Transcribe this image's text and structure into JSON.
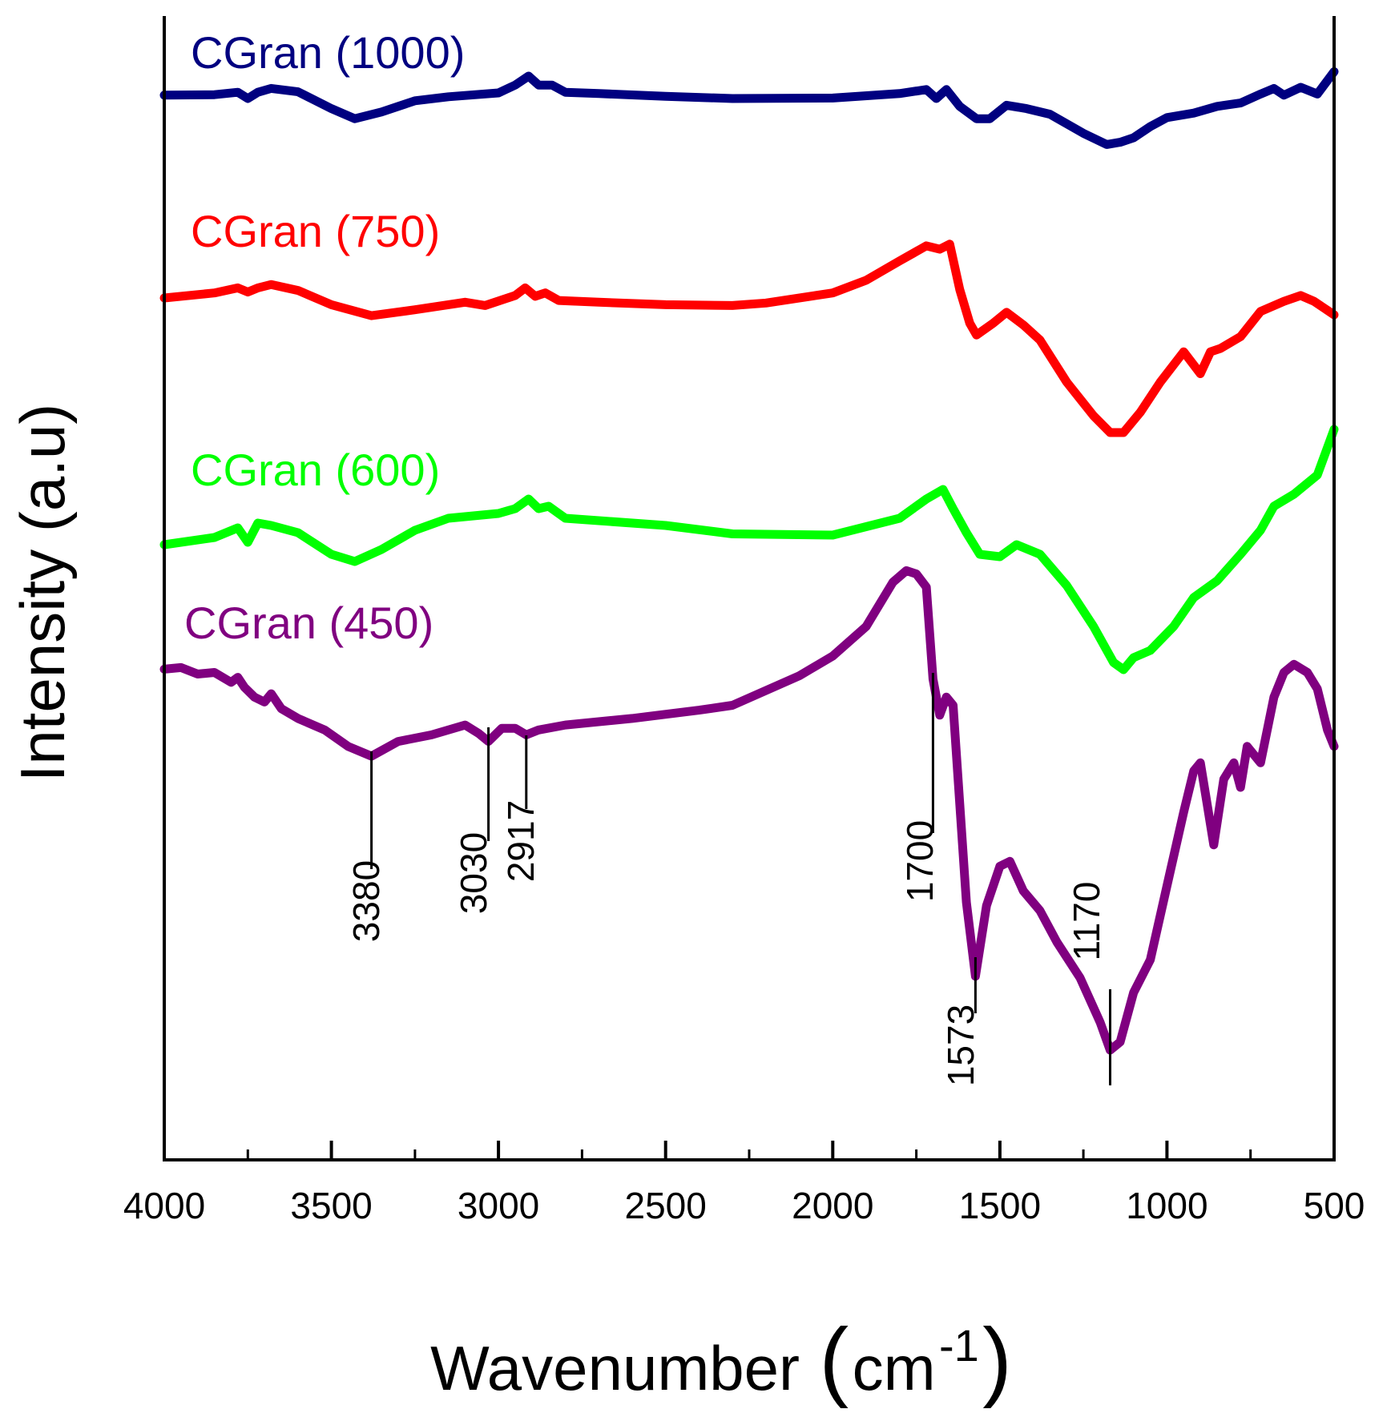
{
  "chart_data": {
    "type": "line",
    "title": "",
    "xlabel": "Wavenumber",
    "xlabel_unit": "cm",
    "xlabel_unit_exponent": "-1",
    "ylabel": "Intensity (a.u)",
    "xlim": [
      4000,
      500
    ],
    "x_reversed": true,
    "xticks": [
      4000,
      3500,
      3000,
      2500,
      2000,
      1500,
      1000,
      500
    ],
    "xtick_labels": [
      "4000",
      "3500",
      "3000",
      "2500",
      "2000",
      "1500",
      "1000",
      "500"
    ],
    "yticks_shown": false,
    "grid": false,
    "series": [
      {
        "name": "CGran (1000)",
        "label": "CGran (1000)",
        "color": "#000080",
        "x": [
          4000,
          3850,
          3780,
          3750,
          3720,
          3680,
          3600,
          3500,
          3430,
          3350,
          3250,
          3150,
          3000,
          2950,
          2910,
          2880,
          2840,
          2800,
          2700,
          2500,
          2300,
          2000,
          1800,
          1720,
          1690,
          1660,
          1620,
          1570,
          1530,
          1480,
          1420,
          1350,
          1250,
          1180,
          1140,
          1100,
          1050,
          1000,
          920,
          850,
          780,
          720,
          680,
          650,
          600,
          550,
          500
        ],
        "y": [
          0.65,
          0.67,
          0.78,
          0.5,
          0.78,
          0.95,
          0.8,
          0.05,
          -0.4,
          -0.1,
          0.4,
          0.58,
          0.75,
          1.1,
          1.5,
          1.1,
          1.1,
          0.78,
          0.72,
          0.6,
          0.5,
          0.52,
          0.72,
          0.9,
          0.5,
          0.9,
          0.15,
          -0.4,
          -0.4,
          0.2,
          0.05,
          -0.2,
          -1.05,
          -1.55,
          -1.45,
          -1.25,
          -0.75,
          -0.35,
          -0.15,
          0.15,
          0.3,
          0.7,
          0.95,
          0.65,
          1.0,
          0.7,
          1.7
        ]
      },
      {
        "name": "CGran (750)",
        "label": "CGran (750)",
        "color": "#FF0000",
        "x": [
          4000,
          3850,
          3780,
          3750,
          3720,
          3680,
          3600,
          3500,
          3380,
          3250,
          3100,
          3040,
          2950,
          2920,
          2890,
          2860,
          2820,
          2700,
          2500,
          2300,
          2200,
          2000,
          1900,
          1800,
          1720,
          1680,
          1650,
          1620,
          1590,
          1570,
          1520,
          1480,
          1430,
          1380,
          1300,
          1220,
          1170,
          1130,
          1080,
          1020,
          950,
          900,
          870,
          840,
          780,
          720,
          650,
          600,
          560,
          500
        ],
        "y": [
          0,
          0.3,
          0.6,
          0.35,
          0.6,
          0.8,
          0.45,
          -0.4,
          -1.05,
          -0.7,
          -0.25,
          -0.45,
          0.15,
          0.6,
          0.1,
          0.3,
          -0.15,
          -0.25,
          -0.4,
          -0.45,
          -0.3,
          0.3,
          1.05,
          2.2,
          3.1,
          2.9,
          3.2,
          0.5,
          -1.5,
          -2.2,
          -1.5,
          -0.85,
          -1.6,
          -2.5,
          -5.0,
          -7.0,
          -8.0,
          -8.0,
          -6.8,
          -5.0,
          -3.2,
          -4.5,
          -3.2,
          -3.0,
          -2.3,
          -0.8,
          -0.2,
          0.15,
          -0.2,
          -1.0
        ]
      },
      {
        "name": "CGran (600)",
        "label": "CGran (600)",
        "color": "#00FF00",
        "x": [
          4000,
          3850,
          3780,
          3750,
          3720,
          3680,
          3600,
          3500,
          3430,
          3350,
          3250,
          3150,
          3000,
          2950,
          2910,
          2880,
          2850,
          2800,
          2700,
          2500,
          2300,
          2000,
          1800,
          1720,
          1670,
          1640,
          1600,
          1560,
          1500,
          1450,
          1380,
          1300,
          1220,
          1160,
          1130,
          1100,
          1050,
          980,
          920,
          850,
          780,
          720,
          680,
          620,
          550,
          500
        ],
        "y": [
          -0.3,
          0.0,
          0.4,
          -0.2,
          0.6,
          0.5,
          0.2,
          -0.7,
          -1.0,
          -0.5,
          0.3,
          0.8,
          1.0,
          1.2,
          1.6,
          1.2,
          1.3,
          0.8,
          0.7,
          0.5,
          0.15,
          0.1,
          0.8,
          1.6,
          2.0,
          1.2,
          0.2,
          -0.7,
          -0.8,
          -0.3,
          -0.7,
          -2.0,
          -3.7,
          -5.2,
          -5.5,
          -5.0,
          -4.7,
          -3.7,
          -2.5,
          -1.8,
          -0.7,
          0.3,
          1.3,
          1.8,
          2.6,
          4.5
        ]
      },
      {
        "name": "CGran (450)",
        "label": "CGran (450)",
        "color": "#800080",
        "x": [
          4000,
          3950,
          3900,
          3850,
          3800,
          3780,
          3760,
          3730,
          3700,
          3680,
          3650,
          3600,
          3520,
          3450,
          3380,
          3300,
          3200,
          3100,
          3060,
          3030,
          2990,
          2950,
          2917,
          2880,
          2800,
          2600,
          2400,
          2300,
          2100,
          2000,
          1900,
          1820,
          1780,
          1750,
          1720,
          1700,
          1680,
          1660,
          1640,
          1600,
          1573,
          1540,
          1500,
          1470,
          1430,
          1380,
          1330,
          1260,
          1200,
          1170,
          1140,
          1100,
          1050,
          1000,
          950,
          920,
          900,
          880,
          860,
          830,
          800,
          780,
          760,
          720,
          680,
          650,
          620,
          580,
          550,
          520,
          500
        ],
        "y": [
          1.2,
          1.3,
          0.9,
          1.0,
          0.4,
          0.7,
          0.1,
          -0.5,
          -0.8,
          -0.3,
          -1.2,
          -1.8,
          -2.5,
          -3.5,
          -4.1,
          -3.2,
          -2.8,
          -2.2,
          -2.7,
          -3.2,
          -2.4,
          -2.4,
          -2.8,
          -2.5,
          -2.2,
          -1.8,
          -1.3,
          -1.0,
          0.8,
          2.0,
          3.8,
          6.5,
          7.2,
          7.0,
          6.2,
          0.6,
          -1.6,
          -0.5,
          -1.0,
          -13.0,
          -17.5,
          -13.2,
          -10.8,
          -10.5,
          -12.3,
          -13.5,
          -15.4,
          -17.6,
          -20.3,
          -22.0,
          -21.5,
          -18.5,
          -16.5,
          -12.0,
          -7.5,
          -5.0,
          -4.5,
          -7.0,
          -9.5,
          -5.5,
          -4.5,
          -6.0,
          -3.5,
          -4.5,
          -0.5,
          1.0,
          1.5,
          1.0,
          0.0,
          -2.5,
          -3.5
        ]
      }
    ],
    "annotations": [
      {
        "label": "3380",
        "x": 3380,
        "series": "CGran (450)"
      },
      {
        "label": "3030",
        "x": 3030,
        "series": "CGran (450)"
      },
      {
        "label": "2917",
        "x": 2917,
        "series": "CGran (450)"
      },
      {
        "label": "1700",
        "x": 1700,
        "series": "CGran (450)"
      },
      {
        "label": "1573",
        "x": 1573,
        "series": "CGran (450)"
      },
      {
        "label": "1170",
        "x": 1170,
        "series": "CGran (450)"
      }
    ]
  }
}
